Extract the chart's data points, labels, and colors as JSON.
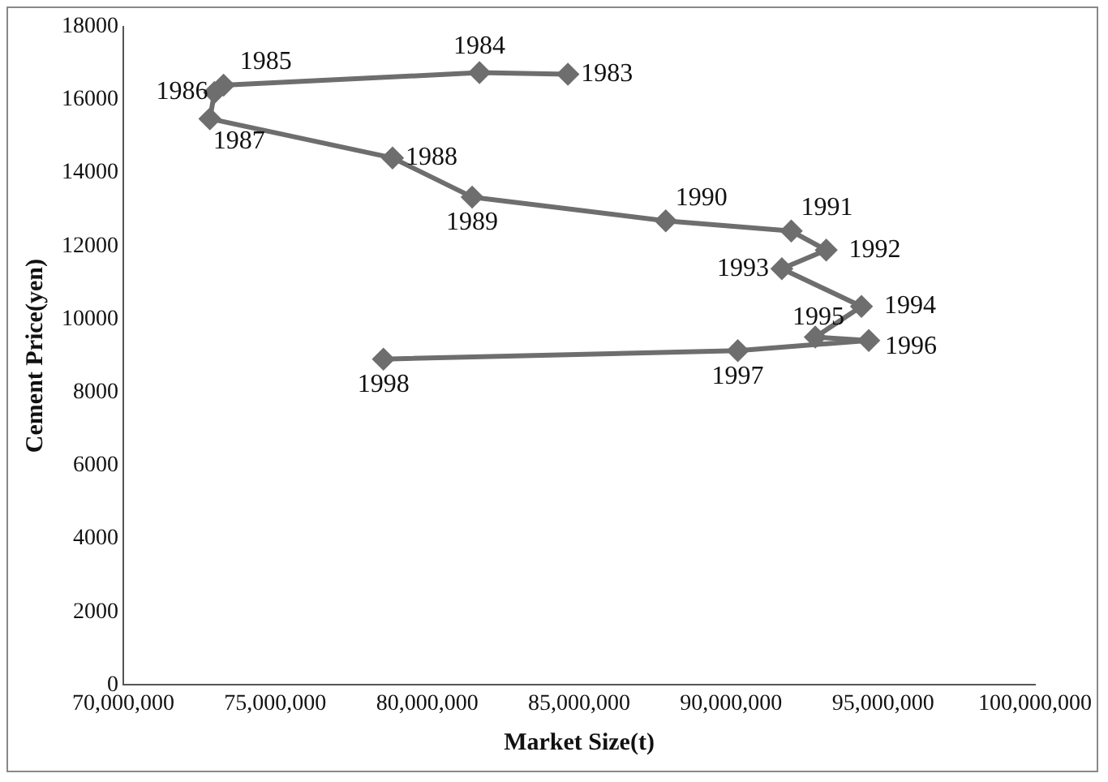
{
  "chart_data": {
    "type": "line",
    "xlabel": "Market Size(t)",
    "ylabel": "Cement Price(yen)",
    "series": [
      {
        "color": "#6e6e6e",
        "x": [
          84630000,
          81720000,
          73300000,
          73000000,
          72850000,
          78860000,
          81480000,
          87850000,
          91980000,
          93130000,
          91670000,
          94290000,
          92770000,
          94530000,
          90220000,
          78560000
        ],
        "values": [
          16700,
          16740,
          16400,
          16200,
          15480,
          14410,
          13340,
          12690,
          12410,
          11890,
          11380,
          10350,
          9510,
          9420,
          9140,
          8910
        ]
      }
    ],
    "xlim": [
      70000000,
      100000000
    ],
    "xticks": [
      {
        "value": 70000000,
        "label": "70,000,000"
      },
      {
        "value": 75000000,
        "label": "75,000,000"
      },
      {
        "value": 80000000,
        "label": "80,000,000"
      },
      {
        "value": 85000000,
        "label": "85,000,000"
      },
      {
        "value": 90000000,
        "label": "90,000,000"
      },
      {
        "value": 95000000,
        "label": "95,000,000"
      },
      {
        "value": 100000000,
        "label": "100,000,000"
      }
    ],
    "ylim": [
      0,
      18000
    ],
    "yticks": [
      0,
      2000,
      4000,
      6000,
      8000,
      10000,
      12000,
      14000,
      16000,
      18000
    ],
    "grid": false,
    "legend": false,
    "marker": "diamond",
    "line_style": "solid",
    "annotations": [
      {
        "text": "1983",
        "x": 84630000,
        "y": 16700
      },
      {
        "text": "1984",
        "x": 81720000,
        "y": 16740
      },
      {
        "text": "1985",
        "x": 73300000,
        "y": 16400
      },
      {
        "text": "1986",
        "x": 73000000,
        "y": 16200
      },
      {
        "text": "1987",
        "x": 72850000,
        "y": 15480
      },
      {
        "text": "1988",
        "x": 78860000,
        "y": 14410
      },
      {
        "text": "1989",
        "x": 81480000,
        "y": 13340
      },
      {
        "text": "1990",
        "x": 87850000,
        "y": 12690
      },
      {
        "text": "1991",
        "x": 91980000,
        "y": 12410
      },
      {
        "text": "1992",
        "x": 93130000,
        "y": 11890
      },
      {
        "text": "1993",
        "x": 91670000,
        "y": 11380
      },
      {
        "text": "1994",
        "x": 94290000,
        "y": 10350
      },
      {
        "text": "1995",
        "x": 92770000,
        "y": 9510
      },
      {
        "text": "1996",
        "x": 94530000,
        "y": 9420
      },
      {
        "text": "1997",
        "x": 90220000,
        "y": 9140
      },
      {
        "text": "1998",
        "x": 78560000,
        "y": 8910
      }
    ]
  }
}
